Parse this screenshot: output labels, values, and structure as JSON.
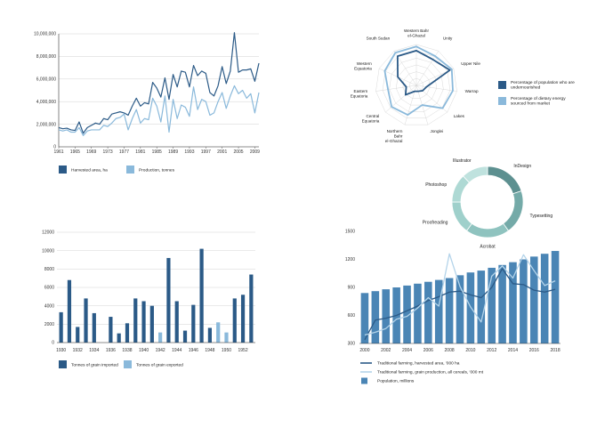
{
  "chart_data": [
    {
      "type": "line",
      "x": [
        1961,
        1962,
        1963,
        1964,
        1965,
        1966,
        1967,
        1968,
        1969,
        1970,
        1971,
        1972,
        1973,
        1974,
        1975,
        1976,
        1977,
        1978,
        1979,
        1980,
        1981,
        1982,
        1983,
        1984,
        1985,
        1986,
        1987,
        1988,
        1989,
        1990,
        1991,
        1992,
        1993,
        1994,
        1995,
        1996,
        1997,
        1998,
        1999,
        2000,
        2001,
        2002,
        2003,
        2004,
        2005,
        2006,
        2007,
        2008,
        2009,
        2010
      ],
      "x_ticks": [
        "1961",
        "1965",
        "1969",
        "1973",
        "1977",
        "1981",
        "1985",
        "1989",
        "1993",
        "1997",
        "2001",
        "2005",
        "2009"
      ],
      "y_ticks": [
        "0",
        "2,000,000",
        "4,000,000",
        "6,000,000",
        "8,000,000",
        "10,000,000"
      ],
      "ylim": [
        0,
        10000000
      ],
      "series": [
        {
          "name": "Harvested area, ha",
          "color": "#2b5a87",
          "values": [
            1700000,
            1600000,
            1650000,
            1500000,
            1450000,
            2200000,
            1200000,
            1700000,
            1900000,
            2100000,
            2000000,
            2500000,
            2400000,
            2900000,
            3000000,
            3100000,
            3000000,
            2800000,
            3600000,
            4300000,
            3600000,
            3900000,
            3800000,
            5700000,
            5200000,
            4400000,
            6100000,
            4200000,
            6400000,
            5300000,
            6700000,
            6600000,
            5300000,
            7200000,
            6300000,
            6700000,
            6500000,
            4800000,
            4500000,
            5400000,
            7100000,
            5600000,
            6700000,
            10100000,
            6600000,
            6800000,
            6800000,
            6900000,
            5800000,
            7400000
          ]
        },
        {
          "name": "Production, tonnes",
          "color": "#8ab9db",
          "values": [
            1500000,
            1400000,
            1500000,
            1300000,
            1300000,
            1700000,
            1000000,
            1400000,
            1500000,
            1500000,
            1500000,
            1900000,
            1800000,
            2100000,
            2500000,
            2600000,
            2900000,
            1500000,
            2500000,
            3300000,
            2100000,
            2500000,
            2400000,
            4300000,
            3600000,
            2200000,
            4500000,
            1300000,
            4200000,
            2500000,
            3700000,
            3500000,
            2700000,
            5300000,
            3300000,
            4200000,
            4000000,
            2800000,
            3000000,
            4000000,
            4800000,
            3400000,
            4500000,
            5400000,
            4700000,
            5000000,
            4300000,
            4700000,
            3000000,
            4800000
          ]
        }
      ]
    },
    {
      "type": "radar",
      "axes": [
        "Western Bahr el-Ghazal",
        "Unity",
        "Upper Nile",
        "Warrap",
        "Lakes",
        "Jonglei",
        "Northern Bahr el-Ghazal",
        "Central Equatoria",
        "Eastern Equatoria",
        "Western Equatoria",
        "South Sudan"
      ],
      "rmax": 1,
      "series": [
        {
          "name": "Percentage of population who are undernourished",
          "color": "#2b5a87",
          "values": [
            0.85,
            0.75,
            0.9,
            0.25,
            0.2,
            0.15,
            0.15,
            0.35,
            0.25,
            0.5,
            0.85
          ]
        },
        {
          "name": "Percentage of dietary energy sourced from market",
          "color": "#8ab9db",
          "values": [
            0.95,
            0.85,
            0.95,
            0.9,
            0.85,
            0.5,
            0.75,
            0.8,
            0.7,
            0.85,
            0.95
          ]
        }
      ]
    },
    {
      "type": "bar",
      "categories": [
        "1930",
        "1931",
        "1932",
        "1933",
        "1934",
        "1935",
        "1936",
        "1937",
        "1938",
        "1939",
        "1940",
        "1941",
        "1942",
        "1943",
        "1944",
        "1945",
        "1946",
        "1947",
        "1948",
        "1949",
        "1950",
        "1951",
        "1952",
        "1953"
      ],
      "x_ticks": [
        "1930",
        "1932",
        "1934",
        "1936",
        "1938",
        "1940",
        "1942",
        "1944",
        "1946",
        "1948",
        "1950",
        "1952"
      ],
      "y_ticks": [
        "0",
        "2000",
        "4000",
        "6000",
        "8000",
        "10000",
        "12000"
      ],
      "ylim": [
        0,
        12000
      ],
      "series": [
        {
          "name": "Tonnes of grain imported",
          "color": "#2b5a87",
          "values": [
            3300,
            6800,
            1700,
            4800,
            3200,
            null,
            2800,
            1000,
            2100,
            4800,
            4500,
            4000,
            null,
            9200,
            4500,
            1300,
            4100,
            10200,
            1600,
            null,
            null,
            4800,
            5200,
            7400
          ]
        },
        {
          "name": "Tonnes of grain exported",
          "color": "#8ab9db",
          "values": [
            null,
            null,
            null,
            null,
            null,
            null,
            null,
            null,
            null,
            null,
            null,
            null,
            1100,
            null,
            null,
            null,
            null,
            null,
            null,
            2200,
            1100,
            null,
            null,
            null
          ]
        }
      ]
    },
    {
      "type": "pie",
      "variant": "donut",
      "categories": [
        "InDesign",
        "Typesetting",
        "Acrobat",
        "Proofreading",
        "Photoshop",
        "Illustrator"
      ],
      "values": [
        20,
        20,
        20,
        15,
        13,
        12
      ],
      "colors": [
        "#5d9090",
        "#74aaa8",
        "#8fc3bf",
        "#9fd0cb",
        "#aed9d4",
        "#bfe2de"
      ]
    },
    {
      "type": "bar",
      "categories": [
        "2000",
        "2001",
        "2002",
        "2003",
        "2004",
        "2005",
        "2006",
        "2007",
        "2008",
        "2009",
        "2010",
        "2011",
        "2012",
        "2013",
        "2014",
        "2015",
        "2016",
        "2017",
        "2018"
      ],
      "x_ticks": [
        "2000",
        "2002",
        "2004",
        "2006",
        "2008",
        "2010",
        "2012",
        "2014",
        "2016",
        "2018"
      ],
      "y_ticks": [
        "300",
        "600",
        "900",
        "1200",
        "1500"
      ],
      "ylim": [
        300,
        1500
      ],
      "series": [
        {
          "name": "Population, millions",
          "color": "#4a85b5",
          "values": [
            840,
            860,
            880,
            900,
            920,
            940,
            960,
            980,
            1000,
            1030,
            1060,
            1080,
            1110,
            1140,
            1170,
            1200,
            1230,
            1260,
            1290
          ]
        },
        {
          "name": "Traditional farming, harvested area, '000 ha",
          "color": "#2b5a87",
          "values": [
            340,
            550,
            570,
            600,
            650,
            700,
            760,
            800,
            850,
            860,
            820,
            790,
            900,
            1100,
            940,
            930,
            870,
            850,
            880
          ]
        },
        {
          "name": "Traditional farming, grain production, all cereals, '000 mt",
          "color": "#b4d4ea",
          "values": [
            390,
            420,
            460,
            560,
            590,
            680,
            790,
            700,
            1260,
            910,
            690,
            530,
            1020,
            1130,
            1000,
            1250,
            1080,
            920,
            970
          ]
        }
      ]
    }
  ]
}
